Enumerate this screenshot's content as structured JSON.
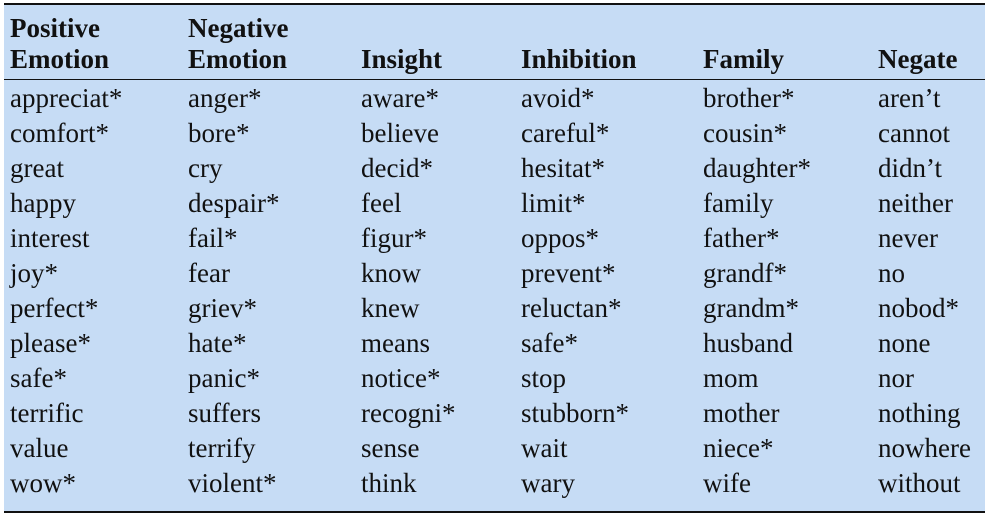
{
  "table": {
    "headers": [
      [
        "Positive",
        "Emotion"
      ],
      [
        "Negative",
        "Emotion"
      ],
      [
        "",
        "Insight"
      ],
      [
        "",
        "Inhibition"
      ],
      [
        "",
        "Family"
      ],
      [
        "",
        "Negate"
      ]
    ],
    "rows": [
      [
        "appreciat*",
        "anger*",
        "aware*",
        "avoid*",
        "brother*",
        "aren’t"
      ],
      [
        "comfort*",
        "bore*",
        "believe",
        "careful*",
        "cousin*",
        "cannot"
      ],
      [
        "great",
        "cry",
        "decid*",
        "hesitat*",
        "daughter*",
        "didn’t"
      ],
      [
        "happy",
        "despair*",
        "feel",
        "limit*",
        "family",
        "neither"
      ],
      [
        "interest",
        "fail*",
        "figur*",
        "oppos*",
        "father*",
        "never"
      ],
      [
        "joy*",
        "fear",
        "know",
        "prevent*",
        "grandf*",
        "no"
      ],
      [
        "perfect*",
        "griev*",
        "knew",
        "reluctan*",
        "grandm*",
        "nobod*"
      ],
      [
        "please*",
        "hate*",
        "means",
        "safe*",
        "husband",
        "none"
      ],
      [
        "safe*",
        "panic*",
        "notice*",
        "stop",
        "mom",
        "nor"
      ],
      [
        "terrific",
        "suffers",
        "recogni*",
        "stubborn*",
        "mother",
        "nothing"
      ],
      [
        "value",
        "terrify",
        "sense",
        "wait",
        "niece*",
        "nowhere"
      ],
      [
        "wow*",
        "violent*",
        "think",
        "wary",
        "wife",
        "without"
      ]
    ]
  },
  "colors": {
    "background": "#c6dcf5",
    "text": "#111111",
    "rules": "#111111"
  }
}
